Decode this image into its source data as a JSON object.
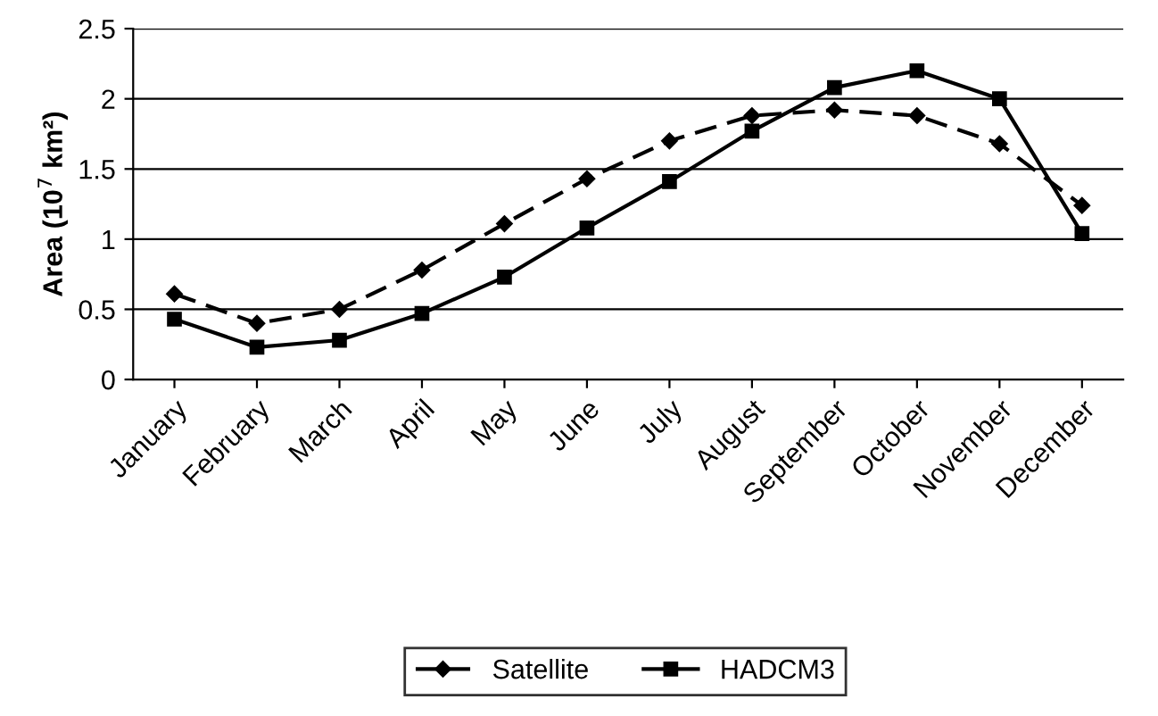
{
  "chart_data": {
    "type": "line",
    "ylabel": "Area (10$^{7}$ km²)",
    "categories": [
      "January",
      "February",
      "March",
      "April",
      "May",
      "June",
      "July",
      "August",
      "September",
      "October",
      "November",
      "December"
    ],
    "series": [
      {
        "name": "Satellite",
        "color": "#000000",
        "marker": "diamond",
        "line_style": "dashed",
        "values": [
          0.61,
          0.4,
          0.5,
          0.78,
          1.11,
          1.43,
          1.7,
          1.88,
          1.92,
          1.88,
          1.68,
          1.24
        ]
      },
      {
        "name": "HADCM3",
        "color": "#000000",
        "marker": "square",
        "line_style": "solid",
        "values": [
          0.43,
          0.23,
          0.28,
          0.47,
          0.73,
          1.08,
          1.41,
          1.77,
          2.08,
          2.2,
          2.0,
          1.04
        ]
      }
    ],
    "ylim": [
      0,
      2.5
    ],
    "yticks": [
      0,
      0.5,
      1,
      1.5,
      2,
      2.5
    ],
    "grid": "y",
    "legend": "bottom"
  }
}
